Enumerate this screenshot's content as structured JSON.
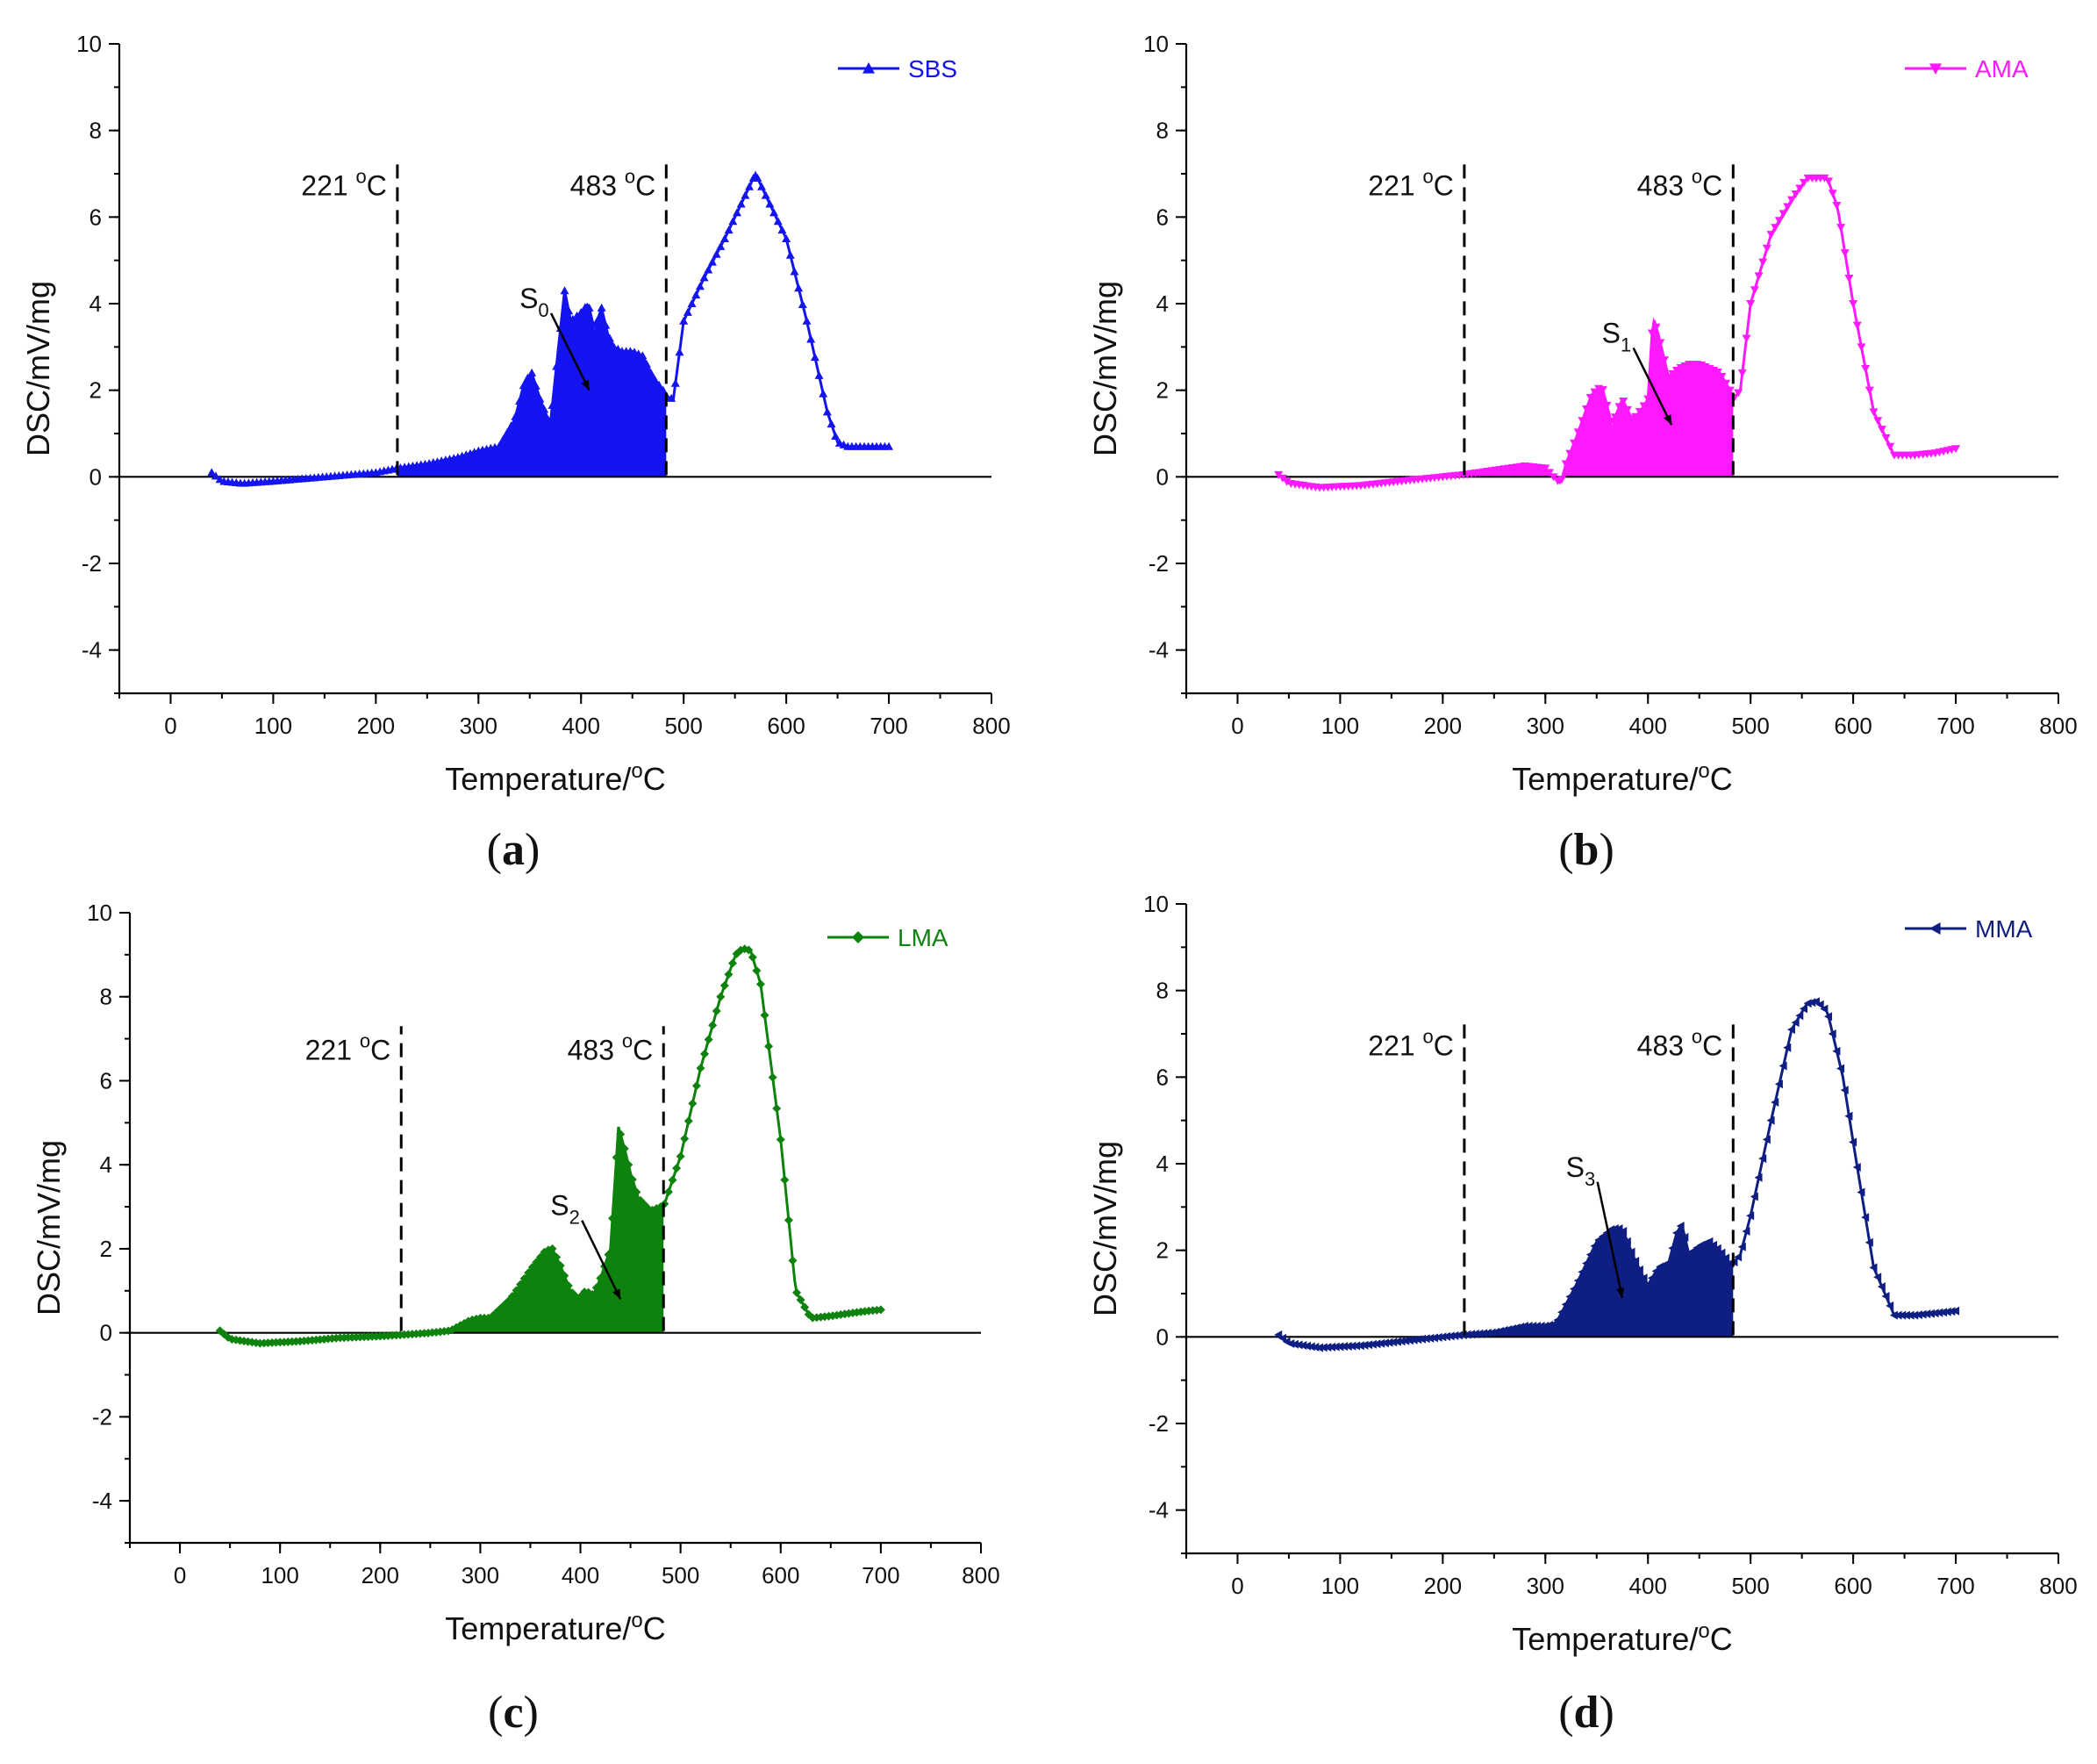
{
  "figure": {
    "common": {
      "xlabel_base": "Temperature/",
      "xlabel_sup": "o",
      "xlabel_unit": "C",
      "ylabel": "DSC/mV/mg",
      "xticks": [
        0,
        100,
        200,
        300,
        400,
        500,
        600,
        700,
        800
      ],
      "yticks": [
        -4,
        -2,
        0,
        2,
        4,
        6,
        8,
        10
      ],
      "xlim": [
        -50,
        800
      ],
      "ylim": [
        -5,
        10
      ],
      "mark1_value": 221,
      "mark2_value": 483,
      "mark1_label": "221 ",
      "mark2_label": "483 ",
      "deg_sup": "o",
      "deg_unit": "C"
    }
  },
  "chart_data": [
    {
      "type": "line",
      "panel": "a",
      "panel_label": "a",
      "series_name": "SBS",
      "color": "#1414f0",
      "marker": "triangle-up",
      "shaded_label": "S",
      "shaded_sub": "0",
      "shaded_range": [
        221,
        483
      ],
      "x": [
        40,
        50,
        70,
        100,
        150,
        200,
        221,
        250,
        280,
        300,
        320,
        335,
        345,
        352,
        360,
        370,
        378,
        384,
        390,
        400,
        407,
        413,
        420,
        426,
        432,
        440,
        450,
        460,
        470,
        480,
        483,
        490,
        500,
        520,
        540,
        560,
        570,
        580,
        600,
        620,
        640,
        650,
        660,
        680,
        700
      ],
      "y": [
        0.1,
        -0.1,
        -0.15,
        -0.1,
        0.0,
        0.1,
        0.2,
        0.3,
        0.45,
        0.6,
        0.7,
        1.3,
        2.2,
        2.4,
        1.8,
        1.2,
        3.0,
        4.3,
        3.6,
        3.8,
        4.0,
        3.4,
        3.9,
        3.3,
        3.0,
        2.9,
        2.9,
        2.8,
        2.3,
        2.0,
        1.85,
        1.8,
        3.6,
        4.6,
        5.5,
        6.5,
        7.0,
        6.5,
        5.5,
        3.6,
        1.5,
        0.8,
        0.7,
        0.7,
        0.7
      ]
    },
    {
      "type": "line",
      "panel": "b",
      "panel_label": "b",
      "series_name": "AMA",
      "color": "#ff19ff",
      "marker": "triangle-down",
      "shaded_label": "S",
      "shaded_sub": "1",
      "shaded_range": [
        221,
        483
      ],
      "x": [
        40,
        50,
        80,
        120,
        160,
        200,
        221,
        250,
        280,
        300,
        310,
        315,
        320,
        330,
        345,
        355,
        365,
        375,
        385,
        395,
        400,
        405,
        410,
        420,
        430,
        440,
        450,
        460,
        470,
        480,
        483,
        490,
        500,
        520,
        540,
        555,
        565,
        575,
        585,
        600,
        620,
        640,
        660,
        680,
        700
      ],
      "y": [
        0.05,
        -0.15,
        -0.25,
        -0.2,
        -0.1,
        0.0,
        0.05,
        0.15,
        0.25,
        0.2,
        -0.05,
        -0.15,
        0.3,
        0.9,
        1.9,
        2.1,
        1.2,
        1.8,
        1.3,
        1.6,
        1.8,
        3.7,
        3.3,
        2.3,
        2.5,
        2.6,
        2.6,
        2.5,
        2.4,
        2.0,
        1.8,
        2.0,
        4.0,
        5.6,
        6.4,
        6.9,
        6.9,
        6.9,
        6.2,
        4.0,
        1.5,
        0.5,
        0.5,
        0.55,
        0.65
      ]
    },
    {
      "type": "line",
      "panel": "c",
      "panel_label": "c",
      "series_name": "LMA",
      "color": "#0d820d",
      "marker": "diamond",
      "shaded_label": "S",
      "shaded_sub": "2",
      "shaded_range": [
        221,
        483
      ],
      "x": [
        40,
        50,
        80,
        120,
        160,
        200,
        221,
        250,
        270,
        290,
        300,
        310,
        330,
        350,
        365,
        372,
        380,
        390,
        398,
        405,
        413,
        420,
        430,
        438,
        445,
        450,
        458,
        470,
        480,
        483,
        500,
        520,
        540,
        555,
        562,
        570,
        580,
        600,
        615,
        630,
        650,
        680,
        700
      ],
      "y": [
        0.05,
        -0.15,
        -0.25,
        -0.2,
        -0.12,
        -0.08,
        -0.05,
        0.0,
        0.05,
        0.3,
        0.35,
        0.35,
        0.8,
        1.5,
        1.95,
        2.0,
        1.6,
        1.0,
        0.8,
        1.0,
        0.9,
        1.3,
        2.0,
        4.9,
        4.3,
        3.8,
        3.2,
        2.9,
        3.0,
        3.0,
        4.2,
        6.3,
        8.0,
        9.0,
        9.15,
        9.1,
        8.3,
        4.6,
        1.0,
        0.35,
        0.4,
        0.5,
        0.55
      ]
    },
    {
      "type": "line",
      "panel": "d",
      "panel_label": "d",
      "series_name": "MMA",
      "color": "#0f1e82",
      "marker": "triangle-left",
      "shaded_label": "S",
      "shaded_sub": "3",
      "shaded_range": [
        221,
        483
      ],
      "x": [
        40,
        50,
        80,
        120,
        160,
        200,
        221,
        250,
        280,
        300,
        310,
        330,
        350,
        365,
        375,
        385,
        395,
        400,
        410,
        420,
        428,
        433,
        440,
        450,
        460,
        470,
        480,
        483,
        490,
        500,
        520,
        540,
        555,
        565,
        575,
        590,
        600,
        620,
        640,
        660,
        680,
        700
      ],
      "y": [
        0.05,
        -0.15,
        -0.25,
        -0.2,
        -0.1,
        0.0,
        0.05,
        0.1,
        0.25,
        0.25,
        0.3,
        1.2,
        2.2,
        2.5,
        2.5,
        1.9,
        1.4,
        1.2,
        1.6,
        1.7,
        2.4,
        2.6,
        1.9,
        2.1,
        2.2,
        2.0,
        1.7,
        1.7,
        1.9,
        2.8,
        5.0,
        7.1,
        7.7,
        7.75,
        7.5,
        6.0,
        4.5,
        1.6,
        0.5,
        0.5,
        0.55,
        0.6
      ]
    }
  ]
}
